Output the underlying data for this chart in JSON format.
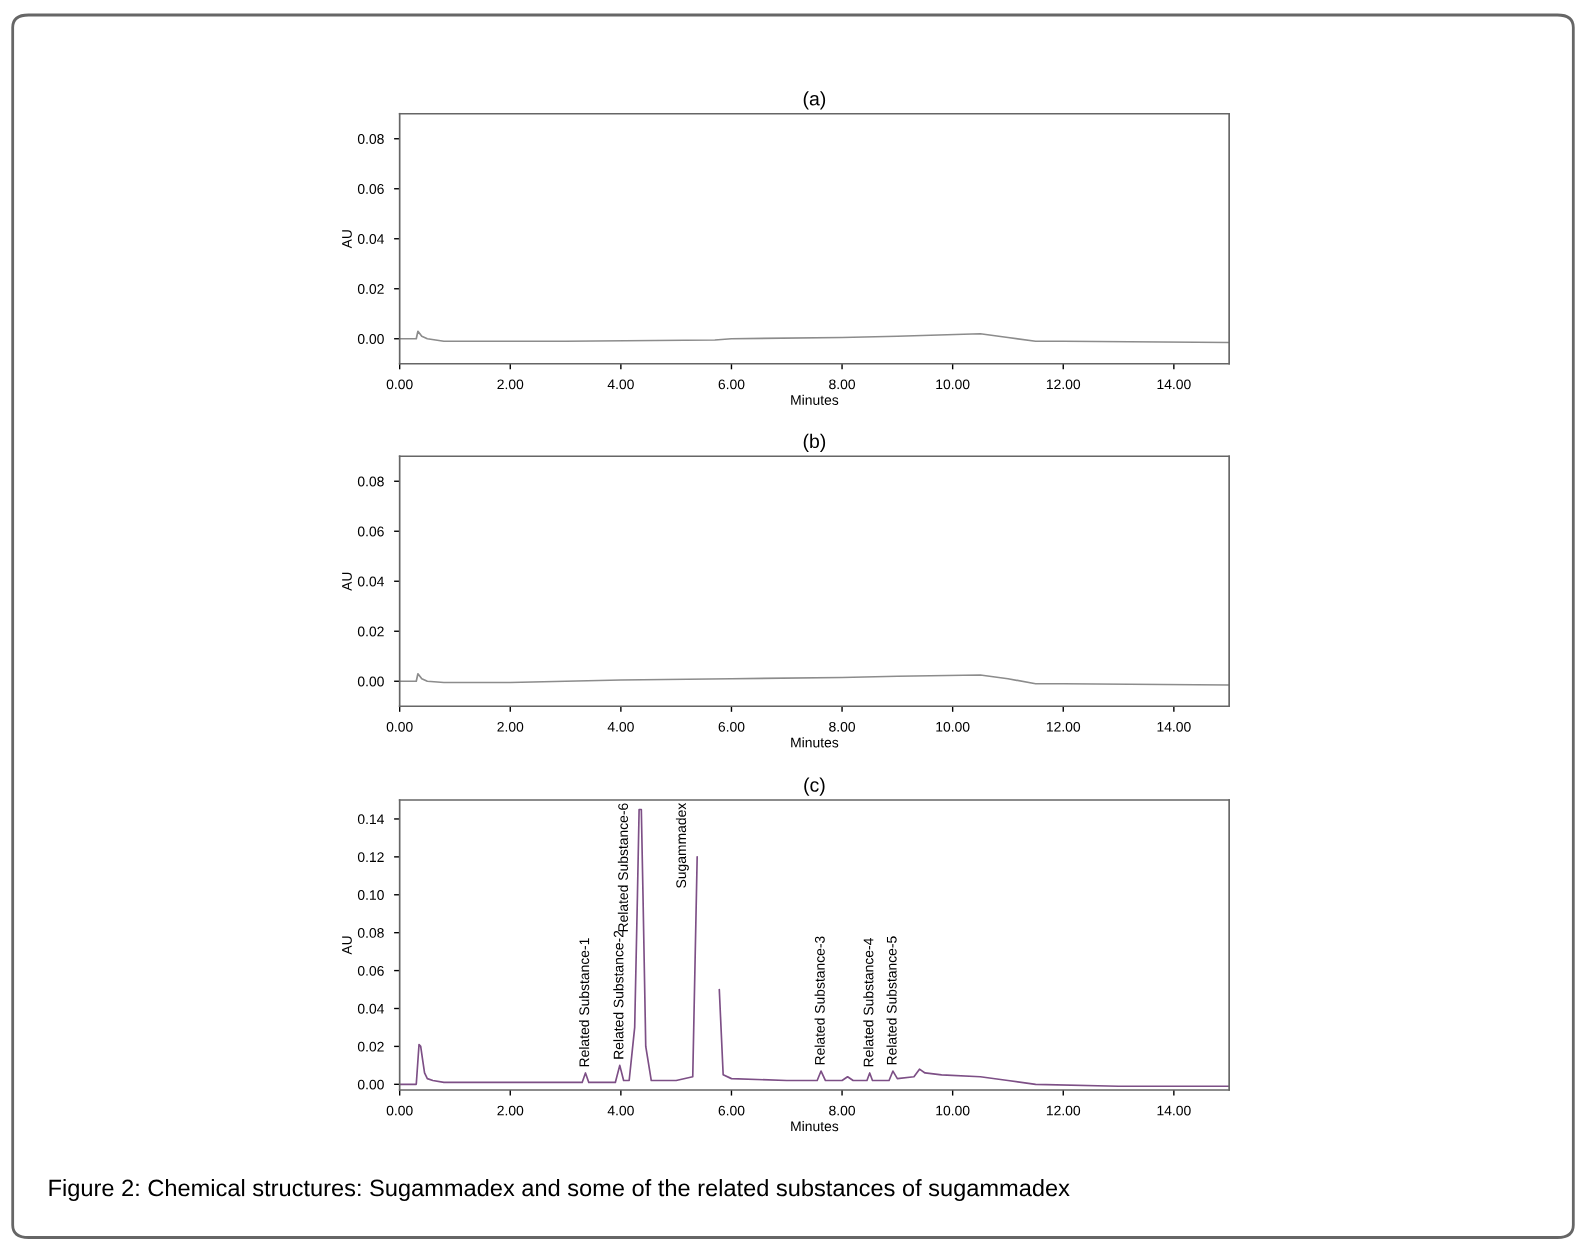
{
  "chart_data": [
    {
      "type": "line",
      "title": "(a)",
      "xlabel": "Minutes",
      "ylabel": "AU",
      "xlim": [
        0,
        15
      ],
      "ylim": [
        -0.01,
        0.09
      ],
      "xticks": [
        {
          "value": 0,
          "label": "0.00"
        },
        {
          "value": 2,
          "label": "2.00"
        },
        {
          "value": 4,
          "label": "4.00"
        },
        {
          "value": 6,
          "label": "6.00"
        },
        {
          "value": 8,
          "label": "8.00"
        },
        {
          "value": 10,
          "label": "10.00"
        },
        {
          "value": 12,
          "label": "12.00"
        },
        {
          "value": 14,
          "label": "14.00"
        }
      ],
      "yticks": [
        {
          "value": 0,
          "label": "0.00"
        },
        {
          "value": 0.02,
          "label": "0.02"
        },
        {
          "value": 0.04,
          "label": "0.04"
        },
        {
          "value": 0.06,
          "label": "0.06"
        },
        {
          "value": 0.08,
          "label": "0.08"
        }
      ],
      "grid": false,
      "legend": false,
      "series": [
        {
          "color": "#8c8c8c",
          "x": [
            0,
            0.3,
            0.33,
            0.4,
            0.5,
            0.8,
            3,
            5.7,
            6,
            8,
            9,
            10.5,
            11,
            11.5,
            12,
            15
          ],
          "values": [
            0,
            0,
            0.003,
            0.001,
            0,
            -0.001,
            -0.001,
            -0.0005,
            0,
            0.0005,
            0.001,
            0.002,
            0.0005,
            -0.001,
            -0.001,
            -0.0015
          ]
        }
      ]
    },
    {
      "type": "line",
      "title": "(b)",
      "xlabel": "Minutes",
      "ylabel": "AU",
      "xlim": [
        0,
        15
      ],
      "ylim": [
        -0.01,
        0.09
      ],
      "xticks": [
        {
          "value": 0,
          "label": "0.00"
        },
        {
          "value": 2,
          "label": "2.00"
        },
        {
          "value": 4,
          "label": "4.00"
        },
        {
          "value": 6,
          "label": "6.00"
        },
        {
          "value": 8,
          "label": "8.00"
        },
        {
          "value": 10,
          "label": "10.00"
        },
        {
          "value": 12,
          "label": "12.00"
        },
        {
          "value": 14,
          "label": "14.00"
        }
      ],
      "yticks": [
        {
          "value": 0,
          "label": "0.00"
        },
        {
          "value": 0.02,
          "label": "0.02"
        },
        {
          "value": 0.04,
          "label": "0.04"
        },
        {
          "value": 0.06,
          "label": "0.06"
        },
        {
          "value": 0.08,
          "label": "0.08"
        }
      ],
      "grid": false,
      "legend": false,
      "series": [
        {
          "color": "#8c8c8c",
          "x": [
            0,
            0.3,
            0.33,
            0.4,
            0.5,
            0.8,
            2,
            4,
            6,
            8,
            9,
            10.5,
            11,
            11.5,
            12,
            15
          ],
          "values": [
            0,
            0,
            0.003,
            0.001,
            0,
            -0.0005,
            -0.0005,
            0.0005,
            0.001,
            0.0015,
            0.002,
            0.0025,
            0.001,
            -0.001,
            -0.001,
            -0.0015
          ]
        }
      ]
    },
    {
      "type": "line",
      "title": "(c)",
      "xlabel": "Minutes",
      "ylabel": "AU",
      "xlim": [
        0,
        15
      ],
      "ylim": [
        -0.003,
        0.15
      ],
      "xticks": [
        {
          "value": 0,
          "label": "0.00"
        },
        {
          "value": 2,
          "label": "2.00"
        },
        {
          "value": 4,
          "label": "4.00"
        },
        {
          "value": 6,
          "label": "6.00"
        },
        {
          "value": 8,
          "label": "8.00"
        },
        {
          "value": 10,
          "label": "10.00"
        },
        {
          "value": 12,
          "label": "12.00"
        },
        {
          "value": 14,
          "label": "14.00"
        }
      ],
      "yticks": [
        {
          "value": 0,
          "label": "0.00"
        },
        {
          "value": 0.02,
          "label": "0.02"
        },
        {
          "value": 0.04,
          "label": "0.04"
        },
        {
          "value": 0.06,
          "label": "0.06"
        },
        {
          "value": 0.08,
          "label": "0.08"
        },
        {
          "value": 0.1,
          "label": "0.10"
        },
        {
          "value": 0.12,
          "label": "0.12"
        },
        {
          "value": 0.14,
          "label": "0.14"
        }
      ],
      "grid": false,
      "legend": false,
      "series": [
        {
          "color": "#7d4f86",
          "x": [
            0,
            0.3,
            0.35,
            0.38,
            0.42,
            0.45,
            0.5,
            0.6,
            0.8,
            1.5,
            3.0,
            3.3,
            3.36,
            3.42,
            3.5,
            3.9,
            3.98,
            4.05,
            4.15,
            4.25,
            4.3,
            4.33,
            4.37,
            4.4,
            4.45,
            4.55,
            5.0,
            5.3,
            5.38,
            5.45,
            5.7,
            5.78,
            5.85,
            6.0,
            7.0,
            7.55,
            7.62,
            7.7,
            8.0,
            8.1,
            8.2,
            8.45,
            8.5,
            8.55,
            8.85,
            8.92,
            9.0,
            9.3,
            9.4,
            9.5,
            9.8,
            10.5,
            11.0,
            11.5,
            13.0,
            15.0
          ],
          "values": [
            0,
            0,
            0.021,
            0.02,
            0.012,
            0.006,
            0.003,
            0.002,
            0.001,
            0.001,
            0.001,
            0.001,
            0.006,
            0.001,
            0.001,
            0.001,
            0.01,
            0.002,
            0.002,
            0.03,
            0.1,
            0.145,
            0.145,
            0.1,
            0.02,
            0.002,
            0.002,
            0.004,
            0.12,
            null,
            null,
            0.05,
            0.005,
            0.003,
            0.002,
            0.002,
            0.007,
            0.002,
            0.002,
            0.004,
            0.002,
            0.002,
            0.006,
            0.002,
            0.002,
            0.007,
            0.003,
            0.004,
            0.008,
            0.006,
            0.005,
            0.004,
            0.002,
            0.0,
            -0.001,
            -0.001
          ]
        }
      ],
      "annotations": [
        {
          "text": "Related Substance-1",
          "x": 3.36,
          "y": 0.006
        },
        {
          "text": "Related Substance-2",
          "x": 3.98,
          "y": 0.01
        },
        {
          "text": "Related Substance-6",
          "x": 4.33,
          "y": 0.145
        },
        {
          "text": "Sugammadex",
          "x": 5.38,
          "y": 0.12
        },
        {
          "text": "Related Substance-3",
          "x": 7.62,
          "y": 0.007
        },
        {
          "text": "Related Substance-4",
          "x": 8.5,
          "y": 0.006
        },
        {
          "text": "Related Substance-5",
          "x": 8.92,
          "y": 0.007
        },
        "Figure 2: Chemical structures: Sugammadex and some of the related substances of sugammadex"
      ]
    }
  ]
}
